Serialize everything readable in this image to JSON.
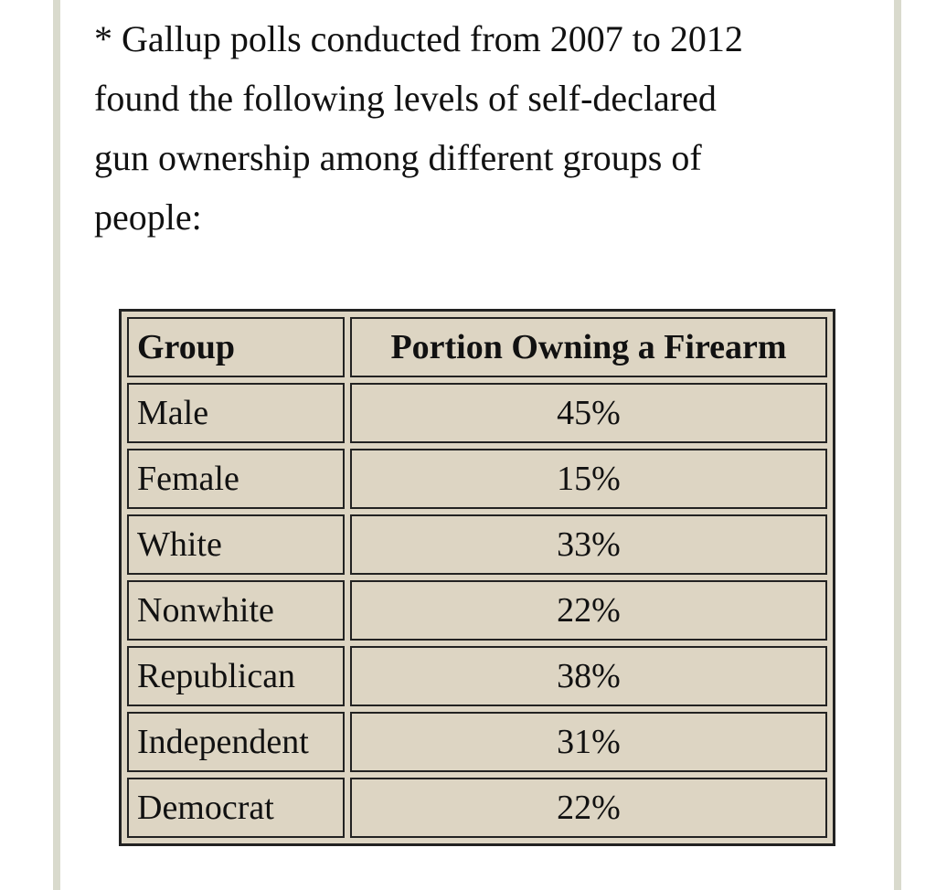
{
  "intro": {
    "lines": [
      "* Gallup polls conducted from 2007 to 2012",
      "found the following levels of self-declared",
      "gun ownership among different groups of",
      "people:"
    ]
  },
  "table": {
    "header": [
      "Group",
      "Portion Owning a Firearm"
    ],
    "rows": [
      [
        "Male",
        "45%"
      ],
      [
        "Female",
        "15%"
      ],
      [
        "White",
        "33%"
      ],
      [
        "Nonwhite",
        "22%"
      ],
      [
        "Republican",
        "38%"
      ],
      [
        "Independent",
        "31%"
      ],
      [
        "Democrat",
        "22%"
      ]
    ]
  }
}
